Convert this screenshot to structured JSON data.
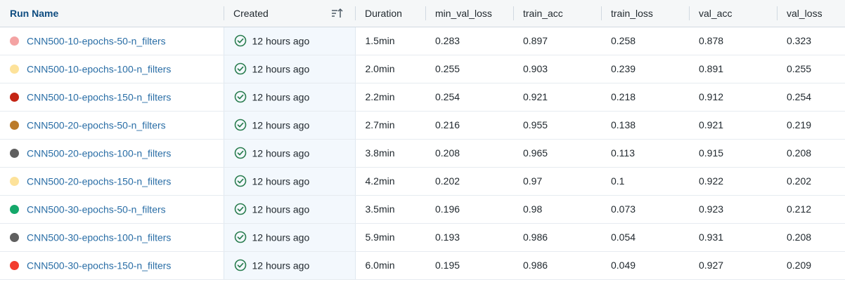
{
  "headers": {
    "run_name": "Run Name",
    "created": "Created",
    "duration": "Duration",
    "min_val_loss": "min_val_loss",
    "train_acc": "train_acc",
    "train_loss": "train_loss",
    "val_acc": "val_acc",
    "val_loss": "val_loss"
  },
  "status_color": "#2a7d4f",
  "rows": [
    {
      "name": "CNN500-10-epochs-50-n_filters",
      "color": "#f4a3a3",
      "created": "12 hours ago",
      "duration": "1.5min",
      "min_val_loss": "0.283",
      "train_acc": "0.897",
      "train_loss": "0.258",
      "val_acc": "0.878",
      "val_loss": "0.323"
    },
    {
      "name": "CNN500-10-epochs-100-n_filters",
      "color": "#fde29a",
      "created": "12 hours ago",
      "duration": "2.0min",
      "min_val_loss": "0.255",
      "train_acc": "0.903",
      "train_loss": "0.239",
      "val_acc": "0.891",
      "val_loss": "0.255"
    },
    {
      "name": "CNN500-10-epochs-150-n_filters",
      "color": "#c42414",
      "created": "12 hours ago",
      "duration": "2.2min",
      "min_val_loss": "0.254",
      "train_acc": "0.921",
      "train_loss": "0.218",
      "val_acc": "0.912",
      "val_loss": "0.254"
    },
    {
      "name": "CNN500-20-epochs-50-n_filters",
      "color": "#bb7b2a",
      "created": "12 hours ago",
      "duration": "2.7min",
      "min_val_loss": "0.216",
      "train_acc": "0.955",
      "train_loss": "0.138",
      "val_acc": "0.921",
      "val_loss": "0.219"
    },
    {
      "name": "CNN500-20-epochs-100-n_filters",
      "color": "#5f5f5f",
      "created": "12 hours ago",
      "duration": "3.8min",
      "min_val_loss": "0.208",
      "train_acc": "0.965",
      "train_loss": "0.113",
      "val_acc": "0.915",
      "val_loss": "0.208"
    },
    {
      "name": "CNN500-20-epochs-150-n_filters",
      "color": "#fde29a",
      "created": "12 hours ago",
      "duration": "4.2min",
      "min_val_loss": "0.202",
      "train_acc": "0.97",
      "train_loss": "0.1",
      "val_acc": "0.922",
      "val_loss": "0.202"
    },
    {
      "name": "CNN500-30-epochs-50-n_filters",
      "color": "#14a86a",
      "created": "12 hours ago",
      "duration": "3.5min",
      "min_val_loss": "0.196",
      "train_acc": "0.98",
      "train_loss": "0.073",
      "val_acc": "0.923",
      "val_loss": "0.212"
    },
    {
      "name": "CNN500-30-epochs-100-n_filters",
      "color": "#5f5f5f",
      "created": "12 hours ago",
      "duration": "5.9min",
      "min_val_loss": "0.193",
      "train_acc": "0.986",
      "train_loss": "0.054",
      "val_acc": "0.931",
      "val_loss": "0.208"
    },
    {
      "name": "CNN500-30-epochs-150-n_filters",
      "color": "#f23c2f",
      "created": "12 hours ago",
      "duration": "6.0min",
      "min_val_loss": "0.195",
      "train_acc": "0.986",
      "train_loss": "0.049",
      "val_acc": "0.927",
      "val_loss": "0.209"
    }
  ]
}
